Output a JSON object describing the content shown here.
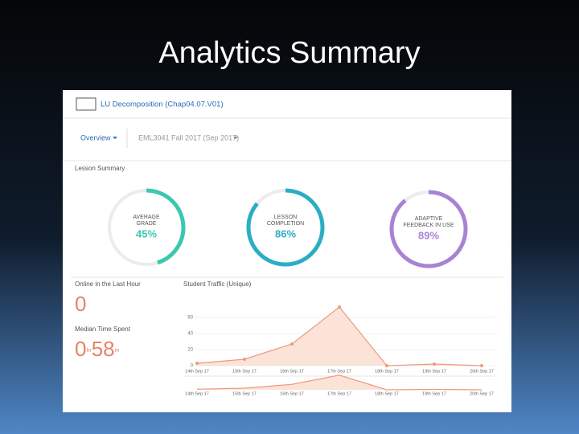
{
  "title": "Analytics Summary",
  "screenshot": {
    "lesson_title": "LU Decomposition (Chap04.07.V01)",
    "tab": "Overview",
    "course": "EML3041 Fall 2017 (Sep 2017)",
    "section": "Lesson Summary",
    "rings": [
      {
        "label_lines": [
          "AVERAGE",
          "GRADE"
        ],
        "value": 45,
        "value_label": "45%",
        "color": "#3cc7b0"
      },
      {
        "label_lines": [
          "LESSON",
          "COMPLETION"
        ],
        "value": 86,
        "value_label": "86%",
        "color": "#2aaec4"
      },
      {
        "label_lines": [
          "ADAPTIVE",
          "FEEDBACK IN USE"
        ],
        "value": 89,
        "value_label": "89%",
        "color": "#a883d4"
      }
    ],
    "online_label": "Online in the Last Hour",
    "online_value": "0",
    "median_label": "Median Time Spent",
    "median_hours": "0",
    "median_hours_unit": "hr",
    "median_minutes": "58",
    "median_minutes_unit": "m"
  },
  "chart_data": {
    "type": "line",
    "title": "Student Traffic (Unique)",
    "categories": [
      "14th Sep 17",
      "15th Sep 17",
      "16th Sep 17",
      "17th Sep 17",
      "18th Sep 17",
      "19th Sep 17",
      "20th Sep 17"
    ],
    "values": [
      3,
      8,
      27,
      73,
      0,
      2,
      0
    ],
    "color": "#ee9a80",
    "fill": "#fbe3d8",
    "ylim": [
      0,
      80
    ],
    "yticks": [
      0,
      20,
      40,
      60
    ],
    "grid": true
  }
}
